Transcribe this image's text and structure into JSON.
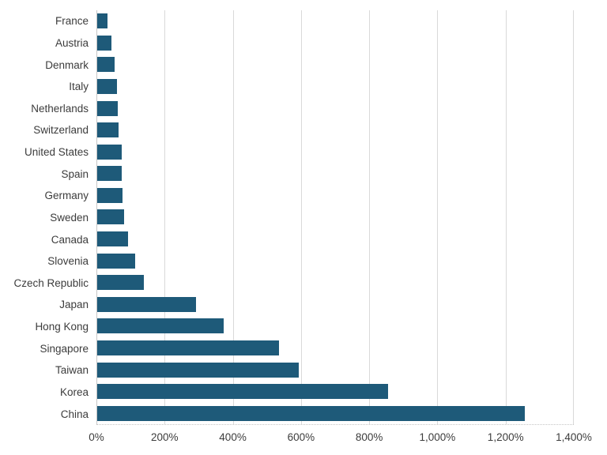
{
  "chart_data": {
    "type": "bar",
    "orientation": "horizontal",
    "title": "",
    "xlabel": "",
    "ylabel": "",
    "unit": "%",
    "categories": [
      "France",
      "Austria",
      "Denmark",
      "Italy",
      "Netherlands",
      "Switzerland",
      "United States",
      "Spain",
      "Germany",
      "Sweden",
      "Canada",
      "Slovenia",
      "Czech Republic",
      "Japan",
      "Hong Kong",
      "Singapore",
      "Taiwan",
      "Korea",
      "China"
    ],
    "values": [
      31,
      42,
      52,
      57,
      60,
      63,
      71,
      72,
      74,
      78,
      91,
      112,
      136,
      289,
      372,
      532,
      590,
      852,
      1254
    ],
    "xlim": [
      0,
      1400
    ],
    "x_ticks": [
      0,
      200,
      400,
      600,
      800,
      1000,
      1200,
      1400
    ],
    "x_tick_labels": [
      "0%",
      "200%",
      "400%",
      "600%",
      "800%",
      "1,000%",
      "1,200%",
      "1,400%"
    ],
    "grid": "vertical-on",
    "legend": "none",
    "sort_order": "ascending-top-to-bottom"
  },
  "colors": {
    "bar": "#1E5A79",
    "gridline": "#d9d9d9",
    "axis_line": "#c6c6c6",
    "text": "#3c3c3c",
    "background": "#ffffff"
  }
}
